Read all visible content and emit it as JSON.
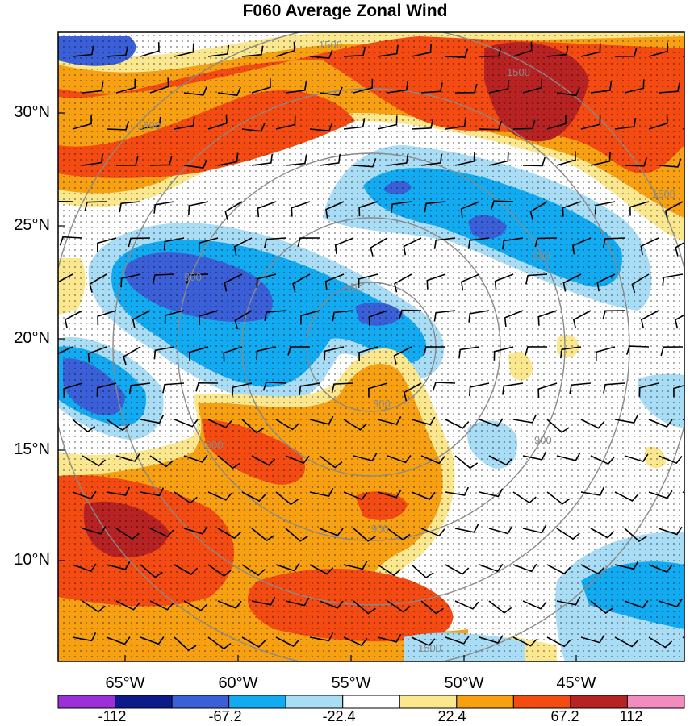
{
  "title": "F060 Average Zonal Wind",
  "lat_labels": [
    "30°N",
    "25°N",
    "20°N",
    "15°N",
    "10°N"
  ],
  "lon_labels": [
    "65°W",
    "60°W",
    "55°W",
    "50°W",
    "45°W"
  ],
  "colorbar": {
    "labels": [
      "-112",
      "-67.2",
      "-22.4",
      "22.4",
      "67.2",
      "112"
    ],
    "colors": [
      "#9b30d9",
      "#0d1a8c",
      "#3b5fd6",
      "#12aaf0",
      "#a8ddf5",
      "#ffffff",
      "#fbe88e",
      "#f7a012",
      "#f44b12",
      "#b72222",
      "#f28cbf"
    ]
  },
  "contour_labels": {
    "range_rings_km": [
      "300",
      "300",
      "900",
      "900",
      "900",
      "900",
      "900",
      "1500",
      "1500",
      "1500",
      "1500",
      "1500"
    ]
  },
  "colors": {
    "stipple": "#000000",
    "range_ring": "#8a8a8a",
    "wind_barb": "#000000",
    "coast": "#000000"
  }
}
